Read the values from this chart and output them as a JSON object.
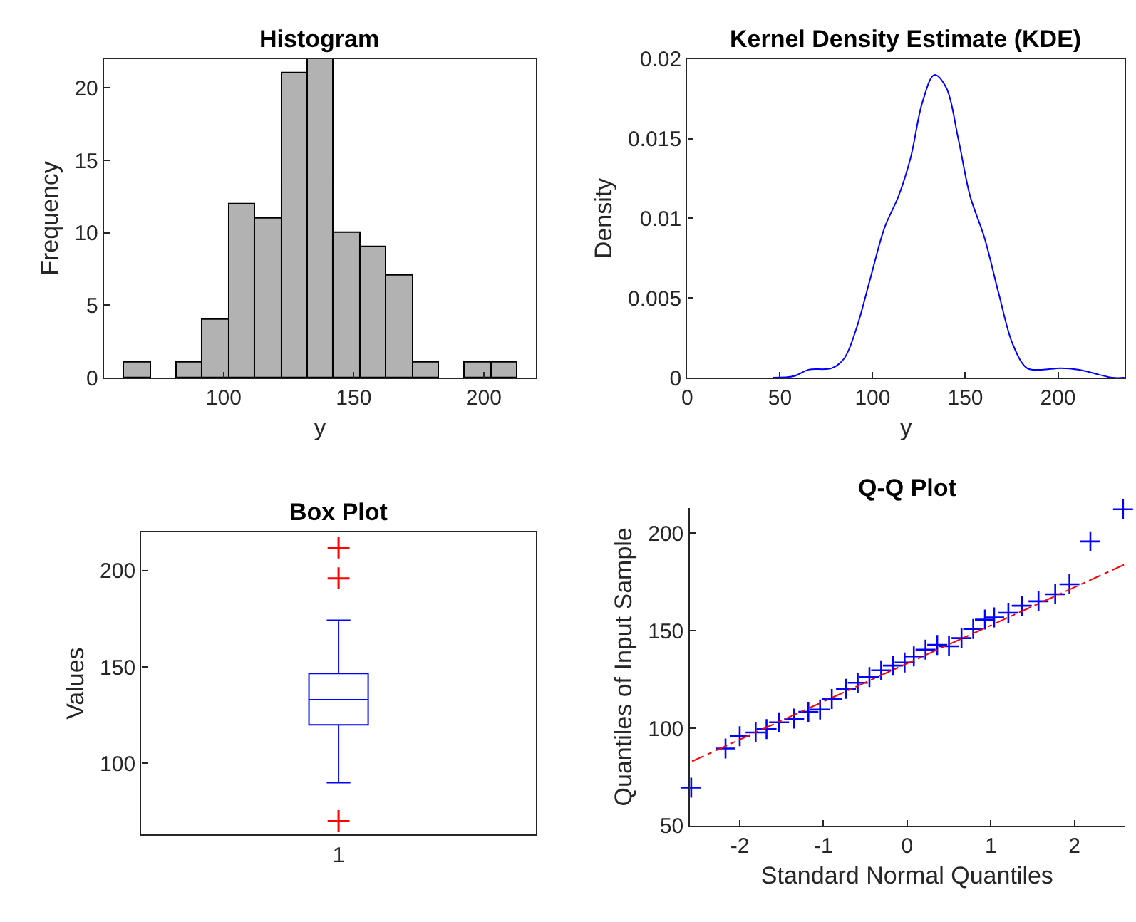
{
  "chart_data": [
    {
      "type": "histogram",
      "title": "Histogram",
      "xlabel": "y",
      "ylabel": "Frequency",
      "color": "#b2b2b2",
      "bins": [
        61.8,
        71.9,
        82.0,
        92.0,
        102.1,
        112.2,
        122.3,
        132.3,
        142.4,
        152.5,
        162.6,
        172.7,
        182.7,
        192.8,
        202.9,
        213.0
      ],
      "values": [
        1,
        0,
        1,
        4,
        12,
        11,
        21,
        22,
        10,
        9,
        7,
        1,
        0,
        1,
        1
      ],
      "xlim": [
        54,
        220
      ],
      "xticks": [
        100,
        150,
        200
      ],
      "ylim": [
        0,
        22
      ],
      "yticks": [
        0,
        5,
        10,
        15,
        20
      ]
    },
    {
      "type": "line",
      "title": "Kernel Density Estimate (KDE)",
      "xlabel": "y",
      "ylabel": "Density",
      "x": [
        46,
        57.7,
        65.4,
        78,
        84.6,
        91,
        98.7,
        106.4,
        114,
        120.5,
        126.9,
        133.3,
        139.7,
        146.2,
        152.6,
        160.3,
        168,
        175.6,
        183.3,
        191,
        201.3,
        211.5,
        221.8,
        229.5,
        235.9
      ],
      "series": [
        {
          "color": "#0000ff",
          "values": [
            0,
            0.0001,
            0.0005,
            0.0006,
            0.0012,
            0.003,
            0.0062,
            0.0094,
            0.0114,
            0.0138,
            0.0173,
            0.019,
            0.0182,
            0.015,
            0.0114,
            0.0088,
            0.0053,
            0.0021,
            0.0006,
            0.0005,
            0.0006,
            0.0005,
            0.0002,
            0,
            0
          ]
        }
      ],
      "xlim": [
        0,
        236
      ],
      "xticks": [
        0,
        50,
        100,
        150,
        200
      ],
      "ylim": [
        0,
        0.02
      ],
      "yticks": [
        0,
        0.005,
        0.01,
        0.015,
        0.02
      ]
    },
    {
      "type": "box",
      "title": "Box Plot",
      "ylabel": "Values",
      "categories": [
        "1"
      ],
      "color": "#0000ff",
      "boxes": [
        {
          "low": 90,
          "q1": 120,
          "median": 133,
          "q3": 146.6,
          "high": 174.3,
          "outliers": [
            212,
            196,
            70
          ]
        }
      ],
      "ylim": [
        63,
        220
      ],
      "yticks": [
        100,
        150,
        200
      ]
    },
    {
      "type": "scatter",
      "title": "Q-Q Plot",
      "xlabel": "Standard Normal Quantiles",
      "ylabel": "Quantiles of Input Sample",
      "series": [
        {
          "type": "scatter",
          "color": "#0000ff",
          "marker": "cross",
          "x": [
            -2.58,
            -2.17,
            -2.0,
            -1.81,
            -1.68,
            -1.53,
            -1.35,
            -1.18,
            -1.04,
            -0.9,
            -0.73,
            -0.59,
            -0.45,
            -0.31,
            -0.17,
            -0.03,
            0.08,
            0.22,
            0.36,
            0.5,
            0.65,
            0.79,
            0.93,
            1.04,
            1.21,
            1.37,
            1.57,
            1.77,
            1.94,
            2.19,
            2.58
          ],
          "values": [
            69.5,
            89.6,
            95.9,
            97.8,
            99.5,
            103,
            104.9,
            108.4,
            109.6,
            115,
            120.2,
            123.3,
            126.2,
            129.7,
            132.1,
            133.7,
            136.8,
            140.3,
            142.7,
            142,
            146.2,
            150.9,
            155.7,
            156.8,
            159.2,
            162.8,
            165.1,
            168.7,
            173.8,
            195.8,
            212.3
          ]
        },
        {
          "type": "line",
          "color": "#ff0000",
          "line_style": "dashed",
          "x": [
            -2.57,
            2.6
          ],
          "values": [
            83,
            184
          ]
        }
      ],
      "xlim": [
        -2.6,
        2.6
      ],
      "xticks": [
        -2,
        -1,
        0,
        1,
        2
      ],
      "ylim": [
        50,
        213
      ],
      "yticks": [
        50,
        100,
        150,
        200
      ]
    }
  ]
}
